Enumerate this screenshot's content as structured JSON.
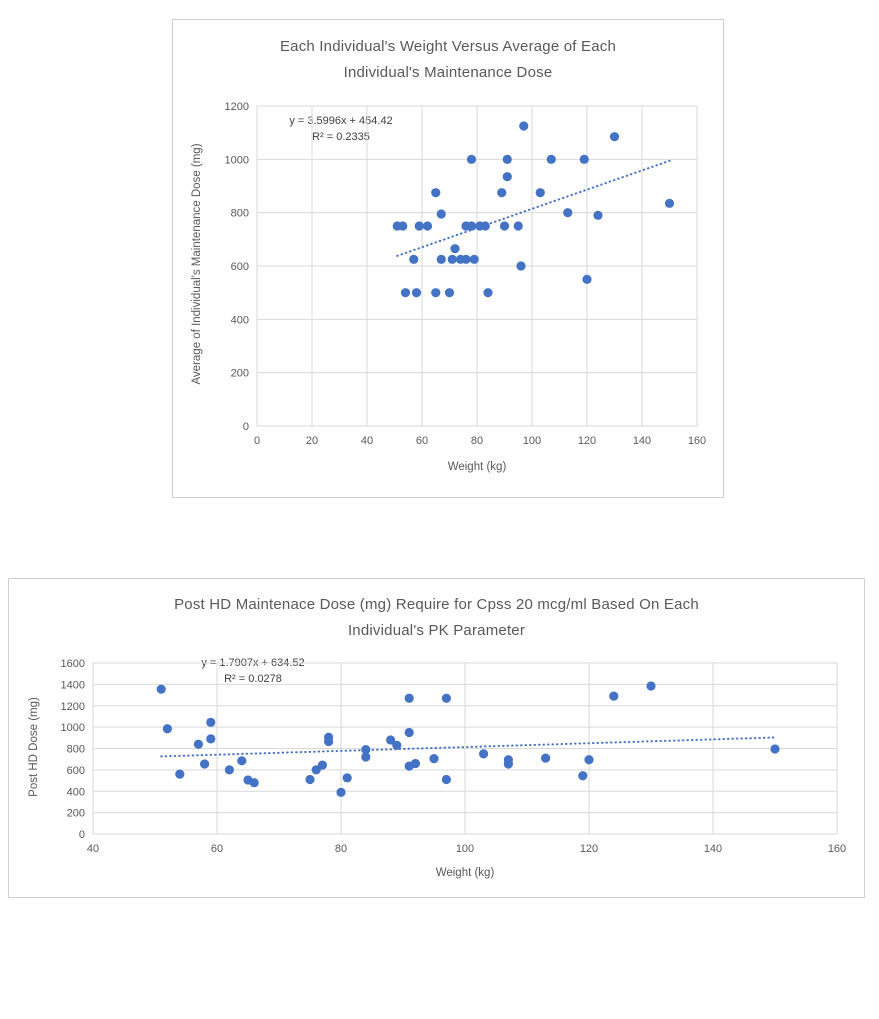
{
  "colors": {
    "marker": "#4472C4",
    "trendline": "#4472C4",
    "gridline": "#D9D9D9",
    "axis_text": "#595959",
    "title_text": "#595959",
    "equation_text": "#3F3F3F"
  },
  "chart_data": [
    {
      "type": "scatter",
      "title": "Each Individual's Weight Versus Average of Each Individual's Maintenance Dose",
      "title_lines": [
        "Each Individual's Weight Versus Average of Each",
        "Individual's Maintenance Dose"
      ],
      "xlabel": "Weight (kg)",
      "ylabel": "Average of Individual's Maintenance Dose (mg)",
      "xlim": [
        0,
        160
      ],
      "ylim": [
        0,
        1200
      ],
      "xticks": [
        0,
        20,
        40,
        60,
        80,
        100,
        120,
        140,
        160
      ],
      "yticks": [
        0,
        200,
        400,
        600,
        800,
        1000,
        1200
      ],
      "grid": true,
      "legend": "none",
      "trendline": {
        "equation_label": "y = 3.5996x + 454.42",
        "r2_label": "R² = 0.2335",
        "slope": 3.5996,
        "intercept": 454.42,
        "x_range": [
          51,
          150
        ],
        "style": "dotted"
      },
      "points": [
        [
          51,
          750
        ],
        [
          53,
          750
        ],
        [
          59,
          750
        ],
        [
          62,
          750
        ],
        [
          76,
          750
        ],
        [
          78,
          750
        ],
        [
          81,
          750
        ],
        [
          83,
          750
        ],
        [
          90,
          750
        ],
        [
          95,
          750
        ],
        [
          57,
          625
        ],
        [
          67,
          625
        ],
        [
          71,
          625
        ],
        [
          74,
          625
        ],
        [
          76,
          625
        ],
        [
          79,
          625
        ],
        [
          54,
          500
        ],
        [
          58,
          500
        ],
        [
          65,
          500
        ],
        [
          70,
          500
        ],
        [
          84,
          500
        ],
        [
          72,
          665
        ],
        [
          67,
          795
        ],
        [
          96,
          600
        ],
        [
          120,
          550
        ],
        [
          65,
          875
        ],
        [
          89,
          875
        ],
        [
          103,
          875
        ],
        [
          91,
          935
        ],
        [
          78,
          1000
        ],
        [
          91,
          1000
        ],
        [
          107,
          1000
        ],
        [
          119,
          1000
        ],
        [
          97,
          1125
        ],
        [
          130,
          1085
        ],
        [
          113,
          800
        ],
        [
          124,
          790
        ],
        [
          150,
          835
        ]
      ]
    },
    {
      "type": "scatter",
      "title": "Post HD Maintenace Dose (mg) Require for Cpss 20 mcg/ml Based On Each Individual's PK Parameter",
      "title_lines": [
        "Post HD Maintenace Dose (mg) Require for Cpss 20 mcg/ml Based On Each",
        "Individual's PK Parameter"
      ],
      "xlabel": "Weight (kg)",
      "ylabel": "Post HD Dose (mg)",
      "xlim": [
        40,
        160
      ],
      "ylim": [
        0,
        1600
      ],
      "xticks": [
        40,
        60,
        80,
        100,
        120,
        140,
        160
      ],
      "yticks": [
        0,
        200,
        400,
        600,
        800,
        1000,
        1200,
        1400,
        1600
      ],
      "grid": true,
      "legend": "none",
      "trendline": {
        "equation_label": "y = 1.7907x + 634.52",
        "r2_label": "R² = 0.0278",
        "slope": 1.7907,
        "intercept": 634.52,
        "x_range": [
          51,
          150
        ],
        "style": "dotted"
      },
      "points": [
        [
          51,
          1355
        ],
        [
          52,
          985
        ],
        [
          54,
          560
        ],
        [
          57,
          840
        ],
        [
          58,
          655
        ],
        [
          59,
          1045
        ],
        [
          59,
          890
        ],
        [
          62,
          600
        ],
        [
          64,
          685
        ],
        [
          65,
          505
        ],
        [
          66,
          480
        ],
        [
          75,
          510
        ],
        [
          76,
          600
        ],
        [
          77,
          645
        ],
        [
          78,
          905
        ],
        [
          78,
          865
        ],
        [
          80,
          390
        ],
        [
          81,
          525
        ],
        [
          84,
          790
        ],
        [
          84,
          720
        ],
        [
          88,
          880
        ],
        [
          89,
          830
        ],
        [
          91,
          1270
        ],
        [
          91,
          950
        ],
        [
          91,
          635
        ],
        [
          92,
          660
        ],
        [
          95,
          705
        ],
        [
          97,
          1270
        ],
        [
          97,
          510
        ],
        [
          103,
          750
        ],
        [
          107,
          655
        ],
        [
          107,
          695
        ],
        [
          113,
          710
        ],
        [
          119,
          545
        ],
        [
          120,
          695
        ],
        [
          124,
          1290
        ],
        [
          130,
          1385
        ],
        [
          150,
          795
        ]
      ]
    }
  ]
}
